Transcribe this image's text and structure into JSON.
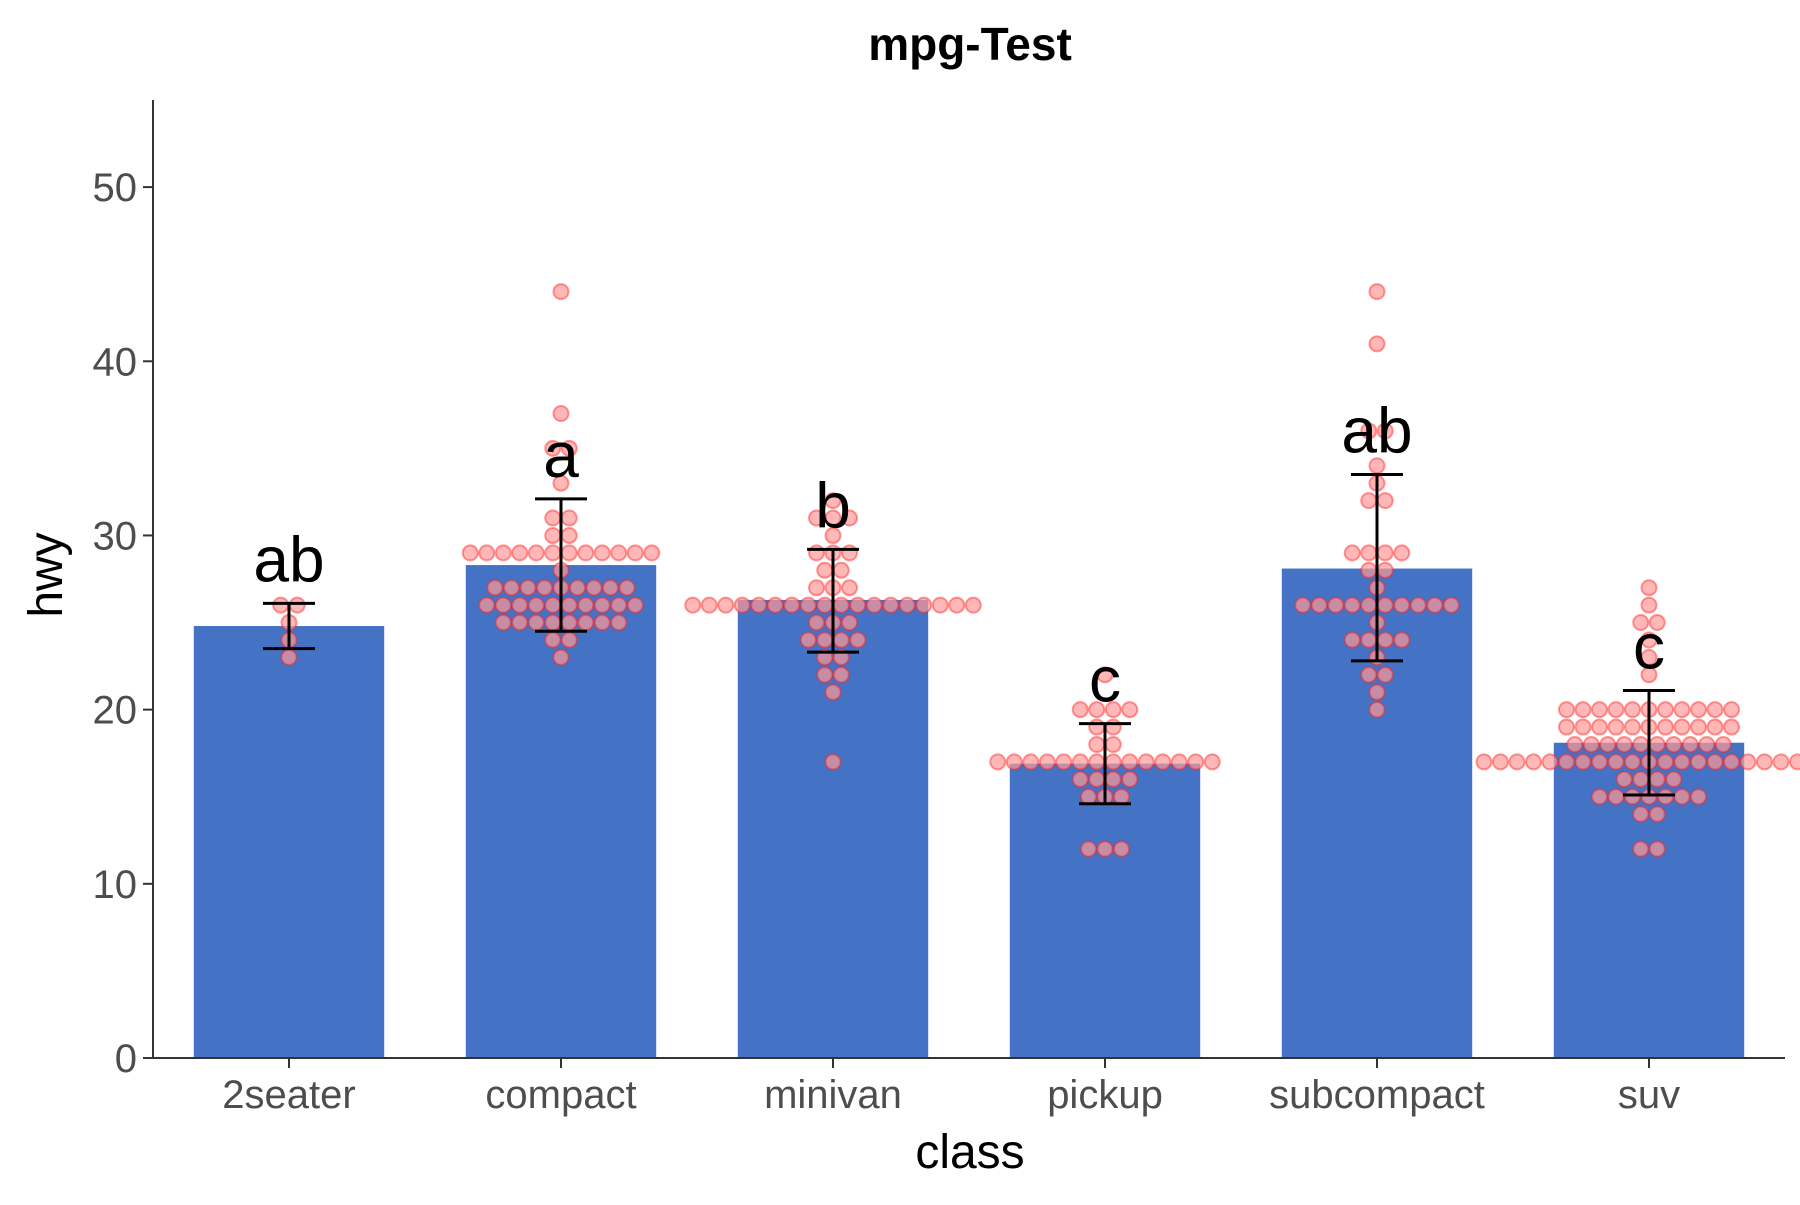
{
  "chart_data": {
    "type": "bar",
    "title": "mpg-Test",
    "xlabel": "class",
    "ylabel": "hwy",
    "ylim": [
      0,
      55
    ],
    "yticks": [
      0,
      10,
      20,
      30,
      40,
      50
    ],
    "grid": false,
    "legend": "none",
    "categories": [
      "2seater",
      "compact",
      "minivan",
      "pickup",
      "subcompact",
      "suv"
    ],
    "values": [
      24.8,
      28.3,
      26.3,
      16.9,
      28.1,
      18.1
    ],
    "error_low": [
      23.5,
      24.5,
      23.3,
      14.6,
      22.8,
      15.1
    ],
    "error_high": [
      26.1,
      32.1,
      29.2,
      19.2,
      33.5,
      21.1
    ],
    "significance_letters": [
      "ab",
      "a",
      "b",
      "c",
      "ab",
      "c"
    ],
    "points": [
      [
        23,
        24,
        25,
        26,
        26
      ],
      [
        23,
        24,
        24,
        25,
        25,
        25,
        25,
        25,
        25,
        25,
        25,
        26,
        26,
        26,
        26,
        26,
        26,
        26,
        26,
        26,
        26,
        27,
        27,
        27,
        27,
        27,
        27,
        27,
        27,
        27,
        28,
        29,
        29,
        29,
        29,
        29,
        29,
        29,
        29,
        29,
        29,
        29,
        29,
        30,
        30,
        31,
        31,
        33,
        35,
        35,
        37,
        44
      ],
      [
        17,
        21,
        22,
        22,
        23,
        23,
        24,
        24,
        24,
        24,
        25,
        25,
        25,
        26,
        26,
        26,
        26,
        26,
        26,
        26,
        26,
        26,
        26,
        26,
        26,
        26,
        26,
        26,
        26,
        26,
        26,
        27,
        27,
        27,
        28,
        28,
        29,
        29,
        29,
        30,
        31,
        31,
        31,
        32
      ],
      [
        12,
        12,
        12,
        15,
        15,
        15,
        16,
        16,
        16,
        16,
        17,
        17,
        17,
        17,
        17,
        17,
        17,
        17,
        17,
        17,
        17,
        17,
        17,
        17,
        18,
        18,
        19,
        19,
        20,
        20,
        20,
        20,
        22
      ],
      [
        20,
        21,
        22,
        22,
        23,
        24,
        24,
        24,
        24,
        25,
        26,
        26,
        26,
        26,
        26,
        26,
        26,
        26,
        26,
        26,
        27,
        28,
        28,
        29,
        29,
        29,
        29,
        32,
        32,
        33,
        34,
        36,
        36,
        41,
        44
      ],
      [
        12,
        12,
        14,
        14,
        15,
        15,
        15,
        15,
        15,
        15,
        15,
        16,
        16,
        16,
        16,
        17,
        17,
        17,
        17,
        17,
        17,
        17,
        17,
        17,
        17,
        17,
        17,
        17,
        17,
        17,
        17,
        17,
        17,
        17,
        17,
        17,
        18,
        18,
        18,
        18,
        18,
        18,
        18,
        18,
        18,
        18,
        19,
        19,
        19,
        19,
        19,
        19,
        19,
        19,
        19,
        19,
        19,
        20,
        20,
        20,
        20,
        20,
        20,
        20,
        20,
        20,
        20,
        20,
        22,
        23,
        24,
        25,
        25,
        26,
        27
      ]
    ],
    "colors": {
      "bar": "#4472c4",
      "point_fill": "#ff9999",
      "point_stroke": "#ff2222",
      "errorbar": "#000000",
      "axis": "#333333"
    }
  }
}
